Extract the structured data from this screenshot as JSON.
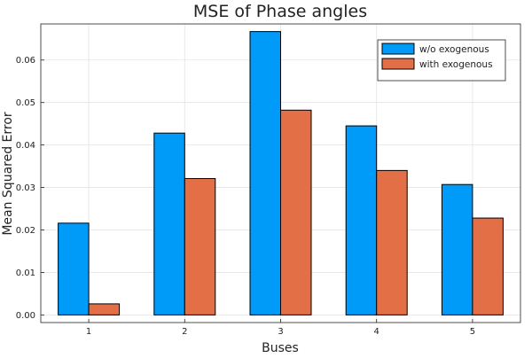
{
  "chart_data": {
    "type": "bar",
    "title": "MSE of Phase angles",
    "xlabel": "Buses",
    "ylabel": "Mean Squared Error",
    "categories": [
      "1",
      "2",
      "3",
      "4",
      "5"
    ],
    "series": [
      {
        "name": "w/o exogenous",
        "color": "#009AF9",
        "values": [
          0.0216,
          0.0428,
          0.0667,
          0.0445,
          0.0307
        ]
      },
      {
        "name": "with exogenous",
        "color": "#E26F46",
        "values": [
          0.0026,
          0.0321,
          0.0482,
          0.034,
          0.0228
        ]
      }
    ],
    "ylim": [
      -0.0018,
      0.0685
    ],
    "yticks": [
      0.0,
      0.01,
      0.02,
      0.03,
      0.04,
      0.05,
      0.06
    ],
    "ytick_labels": [
      "0.00",
      "0.01",
      "0.02",
      "0.03",
      "0.04",
      "0.05",
      "0.06"
    ],
    "grid": true,
    "legend_position": "top-right"
  }
}
